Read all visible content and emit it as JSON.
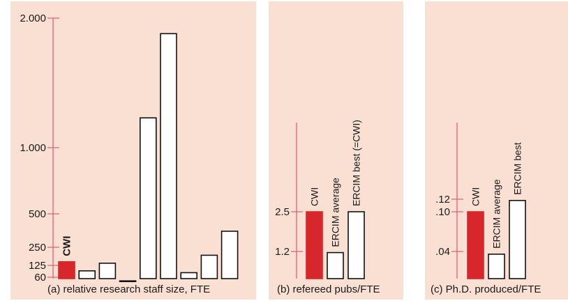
{
  "colors": {
    "panel_bg": "#f9e0d3",
    "axis": "#e0607a",
    "highlight_bar": "#d7262c",
    "bar_fill": "#ffffff",
    "bar_stroke": "#111111"
  },
  "chart_data": [
    {
      "type": "bar",
      "caption": "(a) relative research staff size, FTE",
      "y_ticks": [
        {
          "value": 60,
          "label": "60"
        },
        {
          "value": 125,
          "label": "125"
        },
        {
          "value": 250,
          "label": "250"
        },
        {
          "value": 500,
          "label": "500"
        },
        {
          "value": 1000,
          "label": "1.000"
        },
        {
          "value": 2000,
          "label": "2.000"
        }
      ],
      "ylim": [
        0,
        2000
      ],
      "grid": false,
      "bars": [
        {
          "label": "CWI",
          "value": 150,
          "highlight": true,
          "bold": true
        },
        {
          "label": "",
          "value": 95,
          "highlight": false
        },
        {
          "label": "",
          "value": 140,
          "highlight": false
        },
        {
          "label": "",
          "value": 40,
          "highlight": false
        },
        {
          "label": "",
          "value": 1230,
          "highlight": false
        },
        {
          "label": "",
          "value": 1880,
          "highlight": false
        },
        {
          "label": "",
          "value": 85,
          "highlight": false
        },
        {
          "label": "",
          "value": 195,
          "highlight": false
        },
        {
          "label": "",
          "value": 370,
          "highlight": false
        }
      ]
    },
    {
      "type": "bar",
      "caption": "(b) refereed pubs/FTE",
      "y_ticks": [
        {
          "value": 1.2,
          "label": "1.2"
        },
        {
          "value": 2.5,
          "label": "2.5"
        }
      ],
      "grid": false,
      "bars": [
        {
          "label": "CWI",
          "value": 2.5,
          "highlight": true
        },
        {
          "label": "ERCIM average",
          "value": 1.15,
          "highlight": false
        },
        {
          "label": "ERCIM best (=CWI)",
          "value": 2.5,
          "highlight": false
        }
      ]
    },
    {
      "type": "bar",
      "caption": "(c) Ph.D. produced/FTE",
      "y_ticks": [
        {
          "value": 0.04,
          "label": ".04"
        },
        {
          "value": 0.1,
          "label": ".10"
        },
        {
          "value": 0.12,
          "label": ".12"
        }
      ],
      "grid": false,
      "bars": [
        {
          "label": "CWI",
          "value": 0.1,
          "highlight": true
        },
        {
          "label": "ERCIM average",
          "value": 0.036,
          "highlight": false
        },
        {
          "label": "ERCIM best",
          "value": 0.118,
          "highlight": false
        }
      ]
    }
  ]
}
